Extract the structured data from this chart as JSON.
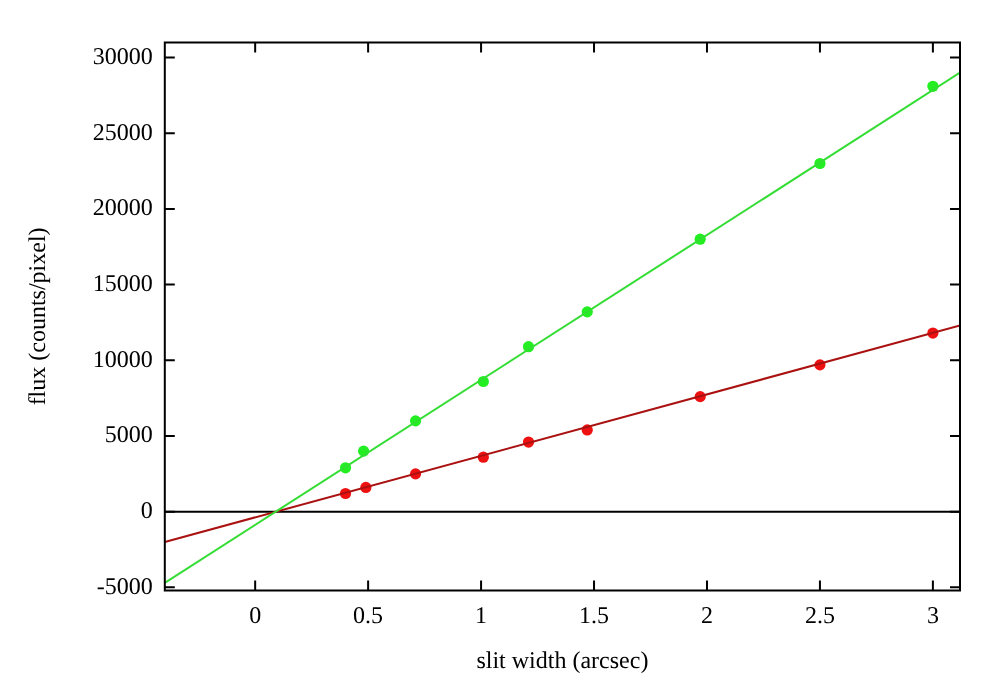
{
  "chart_data": {
    "type": "scatter",
    "xlabel": "slit width (arcsec)",
    "ylabel": "flux (counts/pixel)",
    "xlim": [
      -0.4,
      3.12
    ],
    "ylim": [
      -5200,
      31000
    ],
    "xticks": [
      0,
      0.5,
      1,
      1.5,
      2,
      2.5,
      3
    ],
    "yticks": [
      -5000,
      0,
      5000,
      10000,
      15000,
      20000,
      25000,
      30000
    ],
    "grid": false,
    "ref_lines": [
      {
        "axis": "y",
        "value": 0,
        "color": "#000000"
      }
    ],
    "series": [
      {
        "type": "line",
        "marker": "none",
        "color": "#33dd33",
        "x": [
          -0.4,
          3.12
        ],
        "values": [
          -4700,
          29000
        ]
      },
      {
        "type": "line",
        "marker": "none",
        "color": "#aa1111",
        "x": [
          -0.4,
          3.12
        ],
        "values": [
          -2000,
          12300
        ]
      },
      {
        "marker": "circle",
        "color": "#22ee22",
        "x": [
          0.4,
          0.48,
          0.71,
          1.01,
          1.21,
          1.47,
          1.97,
          2.5,
          3.0
        ],
        "values": [
          2900,
          4000,
          6000,
          8600,
          10900,
          13200,
          18000,
          23000,
          28100
        ]
      },
      {
        "marker": "circle",
        "color": "#ee1111",
        "x": [
          0.4,
          0.49,
          0.71,
          1.01,
          1.21,
          1.47,
          1.97,
          2.5,
          3.0
        ],
        "values": [
          1200,
          1600,
          2500,
          3600,
          4600,
          5400,
          7600,
          9700,
          11800
        ]
      }
    ]
  }
}
